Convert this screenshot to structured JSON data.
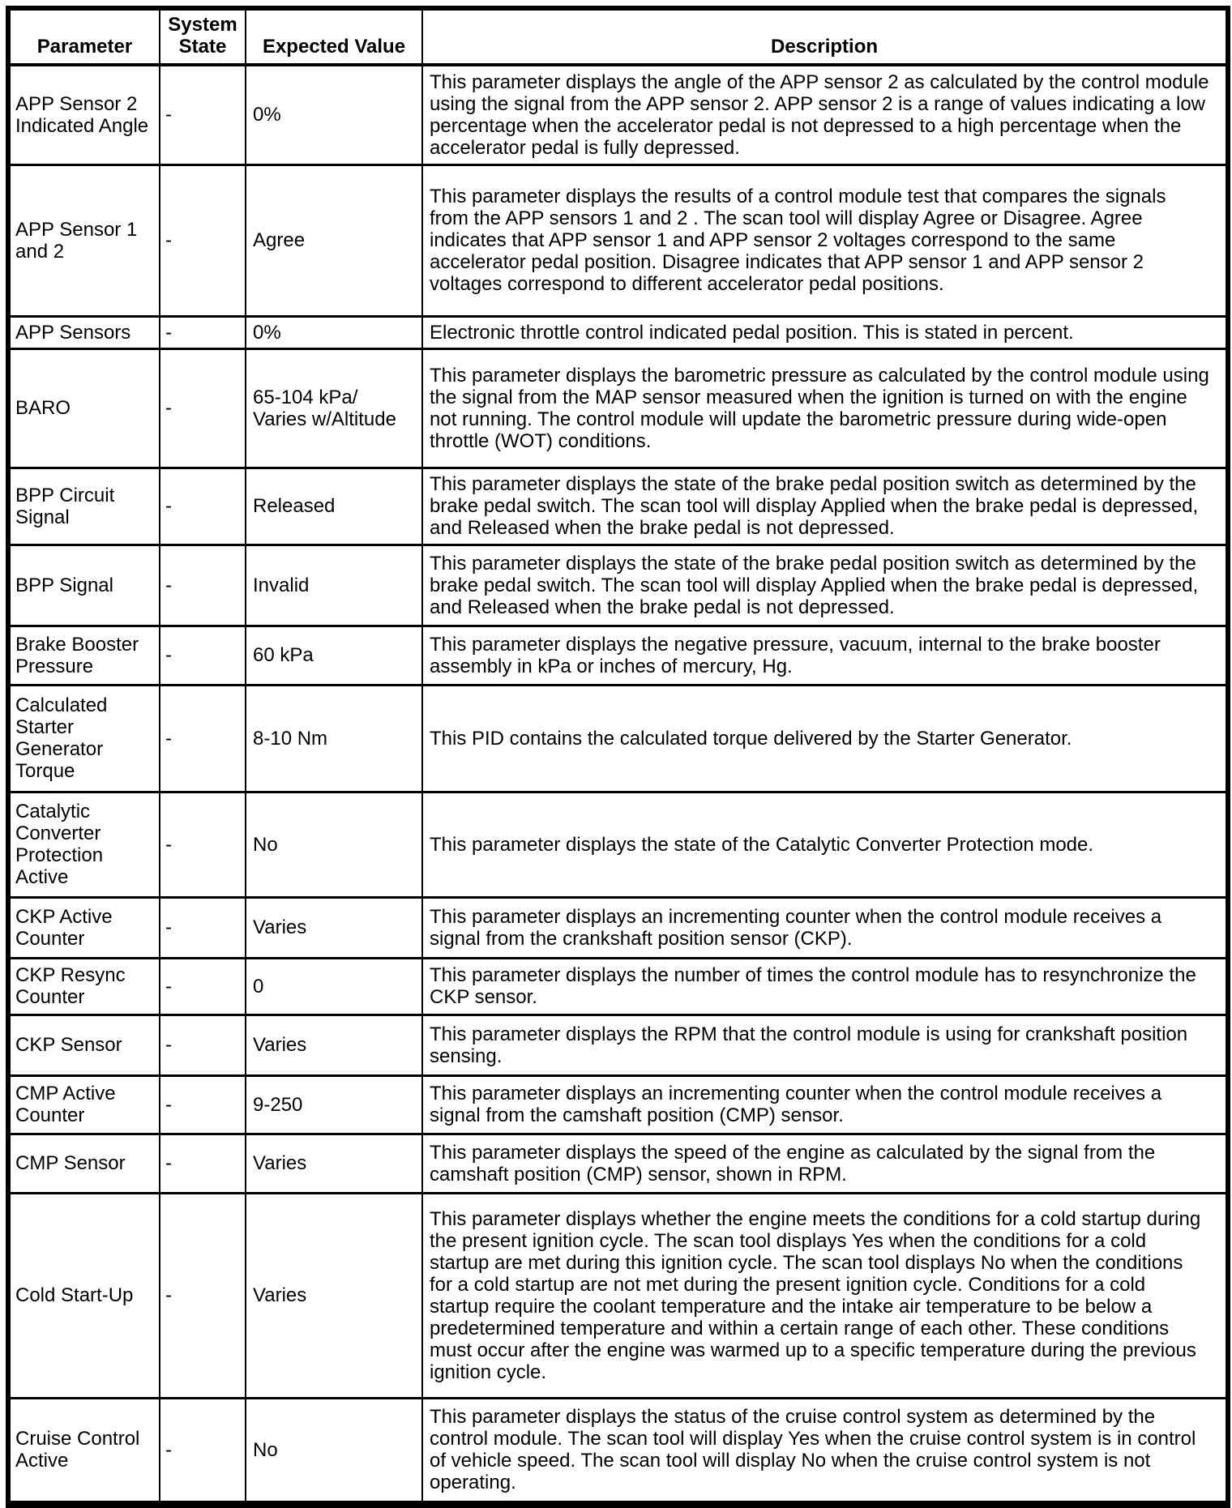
{
  "table": {
    "headers": [
      "Parameter",
      "System State",
      "Expected Value",
      "Description"
    ],
    "rows": [
      {
        "parameter": "APP Sensor 2 Indicated Angle",
        "system_state": "-",
        "expected_value": "0%",
        "description": "This parameter displays the angle of the APP sensor 2 as calculated by the control module using the signal from the APP sensor 2. APP sensor 2 is a range of values indicating a low percentage when the accelerator pedal is not depressed to a high percentage when the accelerator pedal is fully depressed."
      },
      {
        "parameter": "APP Sensor 1 and 2",
        "system_state": "-",
        "expected_value": "Agree",
        "description": "This parameter displays the results of a control module test that compares the signals from the APP sensors 1 and 2 . The scan tool will display Agree or Disagree. Agree indicates that APP sensor 1 and APP sensor 2 voltages correspond to the same accelerator pedal position. Disagree indicates that APP sensor 1 and APP sensor 2 voltages correspond to different accelerator pedal positions."
      },
      {
        "parameter": "APP Sensors",
        "system_state": "-",
        "expected_value": "0%",
        "description": "Electronic throttle control indicated pedal position. This is stated in percent."
      },
      {
        "parameter": "BARO",
        "system_state": "-",
        "expected_value": "65-104 kPa/\nVaries w/Altitude",
        "description": "This parameter displays the barometric pressure as calculated by the control module using the signal from the MAP sensor measured when the ignition is turned on with the engine not running. The control module will update the barometric pressure during wide-open throttle (WOT) conditions."
      },
      {
        "parameter": "BPP Circuit Signal",
        "system_state": "-",
        "expected_value": "Released",
        "description": "This parameter displays the state of the brake pedal position switch as determined by the brake pedal switch. The scan tool will display Applied when the brake pedal is depressed, and Released when the brake pedal is not depressed."
      },
      {
        "parameter": "BPP Signal",
        "system_state": "-",
        "expected_value": "Invalid",
        "description": "This parameter displays the state of the brake pedal position switch as determined by the brake pedal switch. The scan tool will display Applied when the brake pedal is depressed, and Released when the brake pedal is not depressed."
      },
      {
        "parameter": "Brake Booster Pressure",
        "system_state": "-",
        "expected_value": "60 kPa",
        "description": "This parameter displays the negative pressure, vacuum, internal to the brake booster assembly in kPa or inches of mercury, Hg."
      },
      {
        "parameter": "Calculated Starter Generator Torque",
        "system_state": "-",
        "expected_value": "8-10 Nm",
        "description": "This PID contains the calculated torque delivered by the Starter Generator."
      },
      {
        "parameter": "Catalytic Converter Protection Active",
        "system_state": "-",
        "expected_value": "No",
        "description": "This parameter displays the state of the Catalytic Converter Protection mode."
      },
      {
        "parameter": "CKP Active Counter",
        "system_state": "-",
        "expected_value": "Varies",
        "description": "This parameter displays an incrementing counter when the control module receives a signal from the crankshaft position sensor (CKP)."
      },
      {
        "parameter": "CKP Resync Counter",
        "system_state": "-",
        "expected_value": "0",
        "description": "This parameter displays the number of times the control module has to resynchronize the CKP sensor."
      },
      {
        "parameter": "CKP Sensor",
        "system_state": "-",
        "expected_value": "Varies",
        "description": "This parameter displays the RPM that the control module is using for crankshaft position sensing."
      },
      {
        "parameter": "CMP Active Counter",
        "system_state": "-",
        "expected_value": "9-250",
        "description": "This parameter displays an incrementing counter when the control module receives a signal from the camshaft position (CMP) sensor."
      },
      {
        "parameter": "CMP Sensor",
        "system_state": "-",
        "expected_value": "Varies",
        "description": "This parameter displays the speed of the engine as calculated by the signal from the camshaft position (CMP) sensor, shown in RPM."
      },
      {
        "parameter": "Cold Start-Up",
        "system_state": "-",
        "expected_value": "Varies",
        "description": "This parameter displays whether the engine meets the conditions for a cold startup during the present ignition cycle. The scan tool displays Yes when the conditions for a cold startup are met during this ignition cycle. The scan tool displays No when the conditions for a cold startup are not met during the present ignition cycle. Conditions for a cold startup require the coolant temperature and the intake air temperature to be below a predetermined temperature and within a certain range of each other. These conditions must occur after the engine was warmed up to a specific temperature during the previous ignition cycle."
      },
      {
        "parameter": "Cruise Control Active",
        "system_state": "-",
        "expected_value": "No",
        "description": "This parameter displays the status of the cruise control system as determined by the control module. The scan tool will display Yes when the cruise control system is in control of vehicle speed. The scan tool will display No when the cruise control system is not operating."
      }
    ]
  }
}
